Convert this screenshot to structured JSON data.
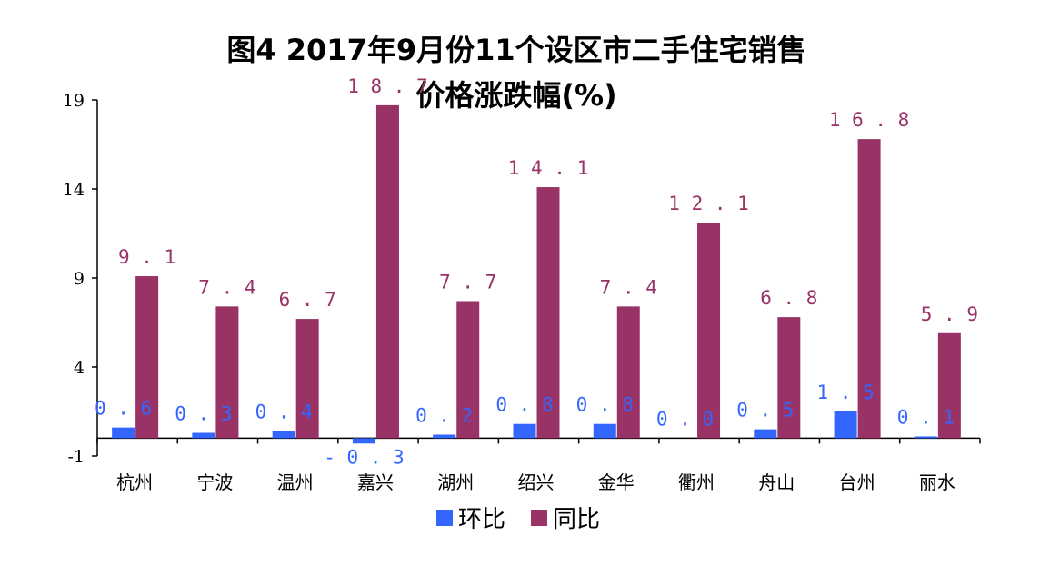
{
  "chart_data": {
    "type": "bar",
    "title": "图4 2017年9月份11个设区市二手住宅销售",
    "subtitle": "价格涨跌幅(%)",
    "categories": [
      "杭州",
      "宁波",
      "温州",
      "嘉兴",
      "湖州",
      "绍兴",
      "金华",
      "衢州",
      "舟山",
      "台州",
      "丽水"
    ],
    "series": [
      {
        "name": "环比",
        "color": "#3366ff",
        "values": [
          0.6,
          0.3,
          0.4,
          -0.3,
          0.2,
          0.8,
          0.8,
          0.0,
          0.5,
          1.5,
          0.1
        ]
      },
      {
        "name": "同比",
        "color": "#993366",
        "values": [
          9.1,
          7.4,
          6.7,
          18.7,
          7.7,
          14.1,
          7.4,
          12.1,
          6.8,
          16.8,
          5.9
        ]
      }
    ],
    "yticks": [
      -1,
      4,
      9,
      14,
      19
    ],
    "ylim": [
      -1,
      19
    ],
    "xlabel": "",
    "ylabel": "",
    "grid": false,
    "legend": "bottom"
  }
}
